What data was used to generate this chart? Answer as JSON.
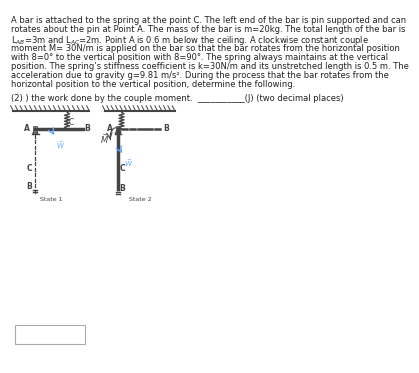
{
  "bg_color": "#ffffff",
  "text_color": "#222222",
  "diagram_color": "#444444",
  "highlight_color": "#66aaff",
  "state1_label": "State 1",
  "state2_label": "State 2",
  "text_lines": [
    "A bar is attached to the spring at the point C. The left end of the bar is pin supported and can",
    "rotates about the pin at Point A. The mass of the bar is m=20kg. The total length of the bar is",
    "L_AB=3m and L_AC=2m. Point A is 0.6 m below the ceiling. A clockwise constant couple",
    "moment M= 30N/m is applied on the bar so that the bar rotates from the horizontal position",
    "with 8=0° to the vertical position with 8=90°. The spring always maintains at the vertical",
    "position. The spring’s stiffness coefficient is k=30N/m and its unstretched length is 0.5 m. The",
    "acceleration due to gravity g=9.81 m/s². During the process that the bar rotates from the",
    "horizontal position to the vertical position, determine the following."
  ],
  "question": "(2) ) the work done by the couple moment.  ___________(J) (two decimal places)",
  "fontsize_text": 6.0,
  "fontsize_label": 5.5,
  "fontsize_state": 4.5
}
